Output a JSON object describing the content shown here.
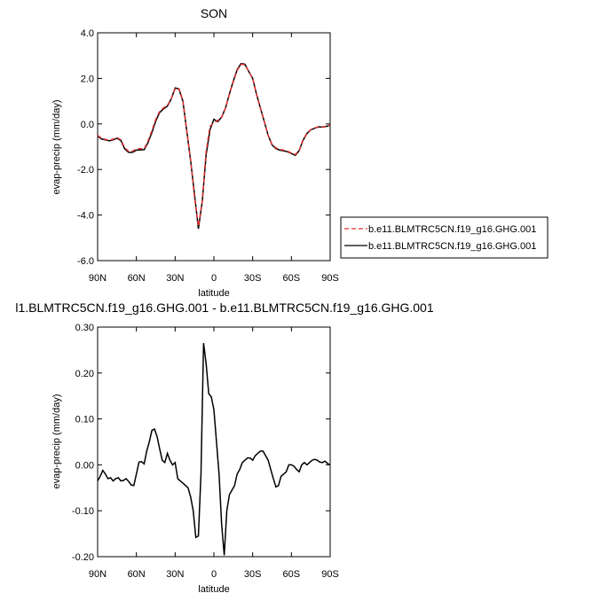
{
  "chart_data": [
    {
      "type": "line",
      "title": "SON",
      "xlabel": "latitude",
      "ylabel": "evap-precip (mm/day)",
      "xlim": [
        90,
        -90
      ],
      "ylim": [
        -6,
        4
      ],
      "x_ticks": [
        90,
        60,
        30,
        0,
        -30,
        -60,
        -90
      ],
      "x_tick_labels": [
        "90N",
        "60N",
        "30N",
        "0",
        "30S",
        "60S",
        "90S"
      ],
      "y_ticks": [
        -6,
        -4,
        -2,
        0,
        2,
        4
      ],
      "y_tick_labels": [
        "-6.0",
        "-4.0",
        "-2.0",
        "0.0",
        "2.0",
        "4.0"
      ],
      "legend_position": "right",
      "series": [
        {
          "name": "b.e11.BLMTRC5CN.f19_g16.GHG.001",
          "color": "#e03030",
          "dash": "dashed",
          "x": [
            90,
            87,
            84,
            81,
            78,
            75,
            72,
            69,
            66,
            63,
            60,
            57,
            54,
            51,
            48,
            45,
            42,
            39,
            36,
            33,
            30,
            27,
            24,
            21,
            18,
            15,
            12,
            9,
            6,
            3,
            0,
            -3,
            -6,
            -9,
            -12,
            -15,
            -18,
            -21,
            -24,
            -27,
            -30,
            -33,
            -36,
            -39,
            -42,
            -45,
            -48,
            -51,
            -54,
            -57,
            -60,
            -63,
            -66,
            -69,
            -72,
            -75,
            -78,
            -81,
            -84,
            -87,
            -90
          ],
          "y": [
            -0.5,
            -0.63,
            -0.68,
            -0.72,
            -0.67,
            -0.6,
            -0.7,
            -1.05,
            -1.2,
            -1.2,
            -1.1,
            -1.08,
            -1.1,
            -0.75,
            -0.3,
            0.2,
            0.55,
            0.7,
            0.82,
            1.1,
            1.55,
            1.55,
            1.0,
            -0.3,
            -1.6,
            -3.2,
            -4.5,
            -3.4,
            -1.2,
            -0.1,
            0.05,
            0.15,
            0.3,
            0.7,
            1.3,
            1.85,
            2.35,
            2.62,
            2.6,
            2.3,
            2.0,
            1.3,
            0.7,
            0.1,
            -0.5,
            -0.9,
            -1.05,
            -1.12,
            -1.15,
            -1.2,
            -1.28,
            -1.35,
            -1.15,
            -0.7,
            -0.4,
            -0.25,
            -0.18,
            -0.12,
            -0.13,
            -0.1,
            -0.05
          ]
        },
        {
          "name": "b.e11.BLMTRC5CN.f19_g16.GHG.001",
          "color": "#000000",
          "dash": "solid",
          "x": [
            90,
            87,
            84,
            81,
            78,
            75,
            72,
            69,
            66,
            63,
            60,
            57,
            54,
            51,
            48,
            45,
            42,
            39,
            36,
            33,
            30,
            27,
            24,
            21,
            18,
            15,
            12,
            9,
            6,
            3,
            0,
            -3,
            -6,
            -9,
            -12,
            -15,
            -18,
            -21,
            -24,
            -27,
            -30,
            -33,
            -36,
            -39,
            -42,
            -45,
            -48,
            -51,
            -54,
            -57,
            -60,
            -63,
            -66,
            -69,
            -72,
            -75,
            -78,
            -81,
            -84,
            -87,
            -90
          ],
          "y": [
            -0.53,
            -0.66,
            -0.7,
            -0.74,
            -0.7,
            -0.63,
            -0.73,
            -1.1,
            -1.25,
            -1.25,
            -1.15,
            -1.14,
            -1.13,
            -0.82,
            -0.38,
            0.13,
            0.5,
            0.66,
            0.78,
            1.1,
            1.58,
            1.53,
            1.0,
            -0.3,
            -1.62,
            -3.1,
            -4.6,
            -3.4,
            -1.35,
            -0.25,
            0.2,
            0.1,
            0.3,
            0.7,
            1.32,
            1.88,
            2.38,
            2.65,
            2.62,
            2.3,
            2.0,
            1.3,
            0.7,
            0.1,
            -0.5,
            -0.92,
            -1.08,
            -1.15,
            -1.18,
            -1.22,
            -1.3,
            -1.38,
            -1.17,
            -0.72,
            -0.42,
            -0.26,
            -0.19,
            -0.13,
            -0.14,
            -0.11,
            -0.06
          ]
        }
      ]
    },
    {
      "type": "line",
      "title": "l1.BLMTRC5CN.f19_g16.GHG.001 - b.e11.BLMTRC5CN.f19_g16.GHG.001",
      "xlabel": "latitude",
      "ylabel": "evap-precip (mm/day)",
      "xlim": [
        90,
        -90
      ],
      "ylim": [
        -0.2,
        0.3
      ],
      "x_ticks": [
        90,
        60,
        30,
        0,
        -30,
        -60,
        -90
      ],
      "x_tick_labels": [
        "90N",
        "60N",
        "30N",
        "0",
        "30S",
        "60S",
        "90S"
      ],
      "y_ticks": [
        -0.2,
        -0.1,
        0.0,
        0.1,
        0.2,
        0.3
      ],
      "y_tick_labels": [
        "-0.20",
        "-0.10",
        "0.00",
        "0.10",
        "0.20",
        "0.30"
      ],
      "series": [
        {
          "color": "#000000",
          "dash": "solid",
          "x": [
            90,
            88,
            86,
            84,
            82,
            80,
            78,
            76,
            74,
            72,
            70,
            68,
            66,
            64,
            62,
            60,
            58,
            56,
            54,
            52,
            50,
            48,
            46,
            44,
            42,
            40,
            38,
            36,
            34,
            32,
            30,
            28,
            26,
            24,
            22,
            20,
            18,
            16,
            14,
            12,
            10,
            8,
            6,
            4,
            2,
            0,
            -2,
            -4,
            -6,
            -8,
            -10,
            -12,
            -14,
            -16,
            -18,
            -20,
            -22,
            -24,
            -26,
            -28,
            -30,
            -32,
            -34,
            -36,
            -38,
            -40,
            -42,
            -44,
            -46,
            -48,
            -50,
            -52,
            -54,
            -56,
            -58,
            -60,
            -62,
            -64,
            -66,
            -68,
            -70,
            -72,
            -74,
            -76,
            -78,
            -80,
            -82,
            -84,
            -86,
            -88,
            -90
          ],
          "y": [
            -0.035,
            -0.025,
            -0.012,
            -0.02,
            -0.03,
            -0.028,
            -0.035,
            -0.03,
            -0.028,
            -0.035,
            -0.034,
            -0.03,
            -0.036,
            -0.044,
            -0.045,
            -0.02,
            0.006,
            0.007,
            0.002,
            0.03,
            0.05,
            0.075,
            0.078,
            0.062,
            0.035,
            0.01,
            0.005,
            0.025,
            0.01,
            0.0,
            0.005,
            -0.03,
            -0.035,
            -0.04,
            -0.045,
            -0.05,
            -0.07,
            -0.1,
            -0.158,
            -0.155,
            -0.02,
            0.265,
            0.22,
            0.155,
            0.148,
            0.12,
            0.05,
            -0.02,
            -0.13,
            -0.197,
            -0.1,
            -0.065,
            -0.055,
            -0.045,
            -0.02,
            -0.01,
            0.005,
            0.01,
            0.015,
            0.015,
            0.01,
            0.02,
            0.025,
            0.03,
            0.03,
            0.02,
            0.01,
            -0.01,
            -0.03,
            -0.048,
            -0.045,
            -0.025,
            -0.02,
            -0.015,
            0.0,
            0.0,
            -0.003,
            -0.01,
            -0.015,
            0.0,
            0.005,
            0.0,
            0.005,
            0.01,
            0.012,
            0.01,
            0.006,
            0.005,
            0.008,
            0.003,
            0.0
          ]
        }
      ]
    }
  ]
}
